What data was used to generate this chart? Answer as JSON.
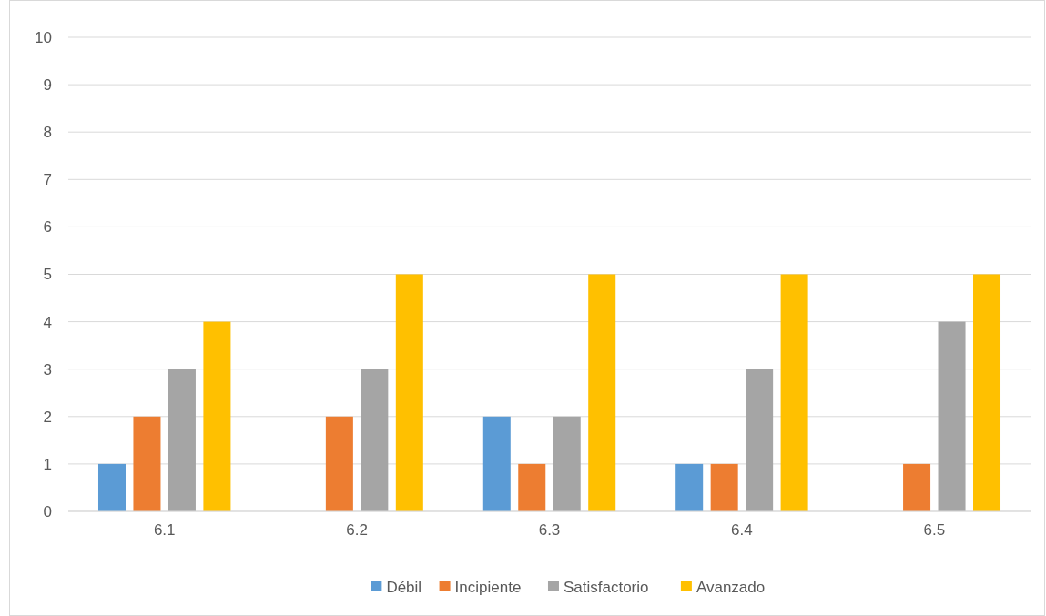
{
  "chart_data": {
    "type": "bar",
    "categories": [
      "6.1",
      "6.2",
      "6.3",
      "6.4",
      "6.5"
    ],
    "series": [
      {
        "name": "Débil",
        "color": "#5b9bd5",
        "values": [
          1,
          0,
          2,
          1,
          0
        ]
      },
      {
        "name": "Incipiente",
        "color": "#ed7d31",
        "values": [
          2,
          2,
          1,
          1,
          1
        ]
      },
      {
        "name": "Satisfactorio",
        "color": "#a5a5a5",
        "values": [
          3,
          3,
          2,
          3,
          4
        ]
      },
      {
        "name": "Avanzado",
        "color": "#ffc000",
        "values": [
          4,
          5,
          5,
          5,
          5
        ]
      }
    ],
    "ylim": [
      0,
      10
    ],
    "yticks": [
      0,
      1,
      2,
      3,
      4,
      5,
      6,
      7,
      8,
      9,
      10
    ],
    "grid": "y",
    "legend": "bottom"
  }
}
